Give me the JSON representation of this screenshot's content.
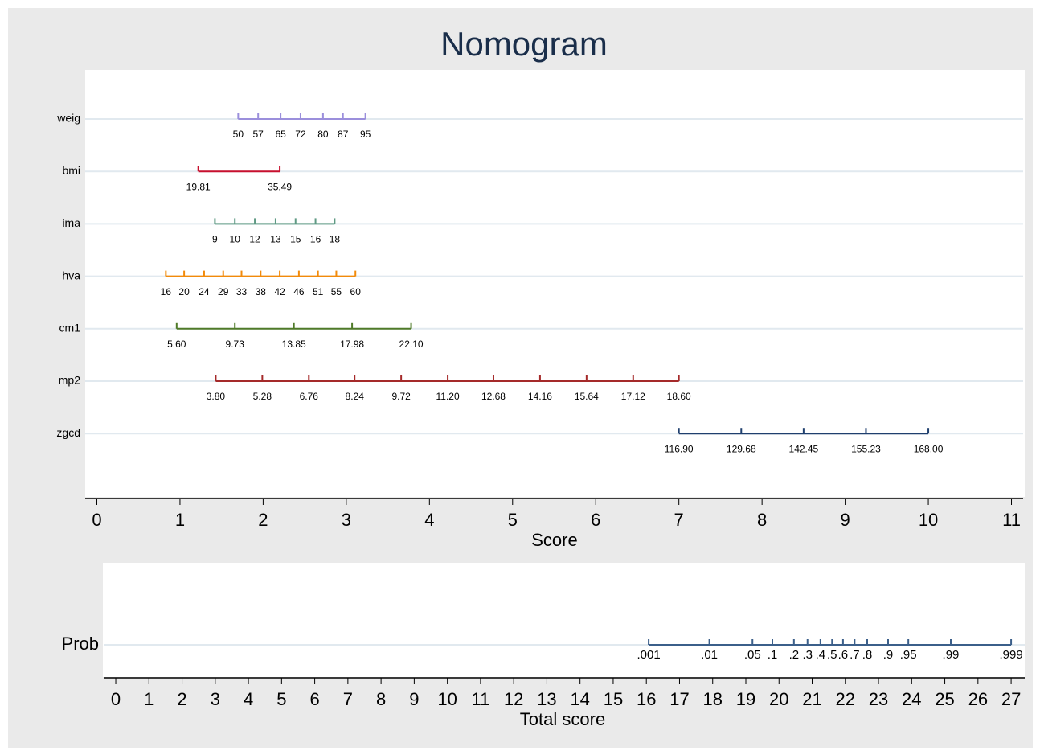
{
  "chart_data": {
    "type": "nomogram",
    "title": "Nomogram",
    "xlabel": "Score",
    "xlim": [
      -0.14,
      11.14
    ],
    "xticks": [
      0,
      1,
      2,
      3,
      4,
      5,
      6,
      7,
      8,
      9,
      10,
      11
    ],
    "rows": [
      {
        "name": "weig",
        "color": "#9b8fdc",
        "ticks": [
          {
            "label": "50",
            "score": 1.7
          },
          {
            "label": "57",
            "score": 1.94
          },
          {
            "label": "65",
            "score": 2.21
          },
          {
            "label": "72",
            "score": 2.45
          },
          {
            "label": "80",
            "score": 2.72
          },
          {
            "label": "87",
            "score": 2.96
          },
          {
            "label": "95",
            "score": 3.23
          }
        ]
      },
      {
        "name": "bmi",
        "color": "#c8102e",
        "ticks": [
          {
            "label": "19.81",
            "score": 1.22
          },
          {
            "label": "35.49",
            "score": 2.2
          }
        ]
      },
      {
        "name": "ima",
        "color": "#5f9a84",
        "ticks": [
          {
            "label": "9",
            "score": 1.42
          },
          {
            "label": "10",
            "score": 1.66
          },
          {
            "label": "12",
            "score": 1.9
          },
          {
            "label": "13",
            "score": 2.15
          },
          {
            "label": "15",
            "score": 2.39
          },
          {
            "label": "16",
            "score": 2.63
          },
          {
            "label": "18",
            "score": 2.86
          }
        ]
      },
      {
        "name": "hva",
        "color": "#f28a0a",
        "ticks": [
          {
            "label": "16",
            "score": 0.83
          },
          {
            "label": "20",
            "score": 1.05
          },
          {
            "label": "24",
            "score": 1.29
          },
          {
            "label": "29",
            "score": 1.52
          },
          {
            "label": "33",
            "score": 1.74
          },
          {
            "label": "38",
            "score": 1.97
          },
          {
            "label": "42",
            "score": 2.2
          },
          {
            "label": "46",
            "score": 2.43
          },
          {
            "label": "51",
            "score": 2.66
          },
          {
            "label": "55",
            "score": 2.88
          },
          {
            "label": "60",
            "score": 3.11
          }
        ]
      },
      {
        "name": "cm1",
        "color": "#4f7a28",
        "ticks": [
          {
            "label": "5.60",
            "score": 0.96
          },
          {
            "label": "9.73",
            "score": 1.66
          },
          {
            "label": "13.85",
            "score": 2.37
          },
          {
            "label": "17.98",
            "score": 3.07
          },
          {
            "label": "22.10",
            "score": 3.78
          }
        ]
      },
      {
        "name": "mp2",
        "color": "#a52a2a",
        "ticks": [
          {
            "label": "3.80",
            "score": 1.43
          },
          {
            "label": "5.28",
            "score": 1.99
          },
          {
            "label": "6.76",
            "score": 2.55
          },
          {
            "label": "8.24",
            "score": 3.1
          },
          {
            "label": "9.72",
            "score": 3.66
          },
          {
            "label": "11.20",
            "score": 4.22
          },
          {
            "label": "12.68",
            "score": 4.77
          },
          {
            "label": "14.16",
            "score": 5.33
          },
          {
            "label": "15.64",
            "score": 5.89
          },
          {
            "label": "17.12",
            "score": 6.45
          },
          {
            "label": "18.60",
            "score": 7.0
          }
        ]
      },
      {
        "name": "zgcd",
        "color": "#1f3f6e",
        "ticks": [
          {
            "label": "116.90",
            "score": 7.0
          },
          {
            "label": "129.68",
            "score": 7.75
          },
          {
            "label": "142.45",
            "score": 8.5
          },
          {
            "label": "155.23",
            "score": 9.25
          },
          {
            "label": "168.00",
            "score": 10.0
          }
        ]
      }
    ],
    "prob": {
      "name": "Prob",
      "color": "#3b5f8a",
      "ticks": [
        {
          "label": ".001",
          "score": 16.07
        },
        {
          "label": ".01",
          "score": 17.9
        },
        {
          "label": ".05",
          "score": 19.2
        },
        {
          "label": ".1",
          "score": 19.8
        },
        {
          "label": ".2",
          "score": 20.45
        },
        {
          "label": ".3",
          "score": 20.86
        },
        {
          "label": ".4",
          "score": 21.25
        },
        {
          "label": ".5",
          "score": 21.6
        },
        {
          "label": ".6",
          "score": 21.93
        },
        {
          "label": ".7",
          "score": 22.28
        },
        {
          "label": ".8",
          "score": 22.66
        },
        {
          "label": ".9",
          "score": 23.29
        },
        {
          "label": ".95",
          "score": 23.9
        },
        {
          "label": ".99",
          "score": 25.18
        },
        {
          "label": ".999",
          "score": 27.0
        }
      ]
    },
    "x2label": "Total score",
    "x2lim": [
      -0.34,
      27.41
    ],
    "x2ticks": [
      0,
      1,
      2,
      3,
      4,
      5,
      6,
      7,
      8,
      9,
      10,
      11,
      12,
      13,
      14,
      15,
      16,
      17,
      18,
      19,
      20,
      21,
      22,
      23,
      24,
      25,
      26,
      27
    ]
  }
}
